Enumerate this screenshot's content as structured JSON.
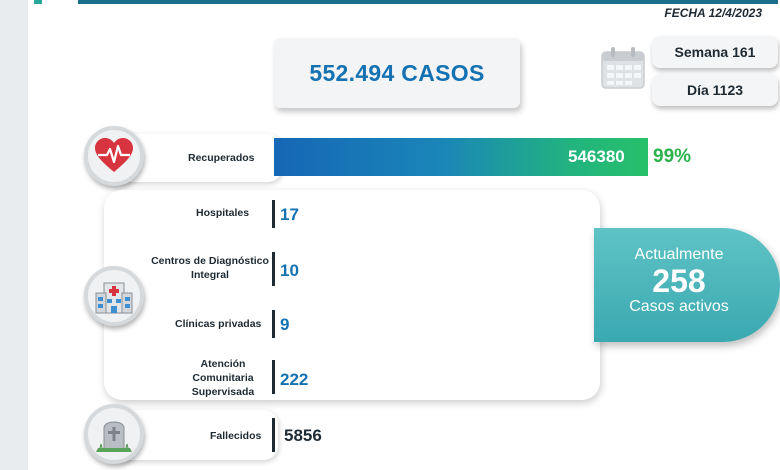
{
  "header": {
    "fecha": "FECHA 12/4/2023"
  },
  "casos": {
    "label": "552.494 CASOS"
  },
  "periodo": {
    "semana": "Semana 161",
    "dia": "Día 1123"
  },
  "recuperados": {
    "label": "Recuperados",
    "value": "546380",
    "percent": "99%"
  },
  "centros": [
    {
      "label": "Hospitales",
      "value": "17"
    },
    {
      "label": "Centros de Diagnóstico Integral",
      "value": "10"
    },
    {
      "label": "Clínicas privadas",
      "value": "9"
    },
    {
      "label": "Atención Comunitaria Supervisada",
      "value": "222"
    }
  ],
  "activos": {
    "line1": "Actualmente",
    "value": "258",
    "line2": "Casos activos"
  },
  "fallecidos": {
    "label": "Fallecidos",
    "value": "5856"
  },
  "icons": [
    "heart-pulse-icon",
    "hospital-icon",
    "calendar-icon",
    "tombstone-icon"
  ],
  "colors": {
    "accent_blue": "#1572b2",
    "accent_green": "#2bb24c",
    "teal": "#3aa9b0"
  }
}
